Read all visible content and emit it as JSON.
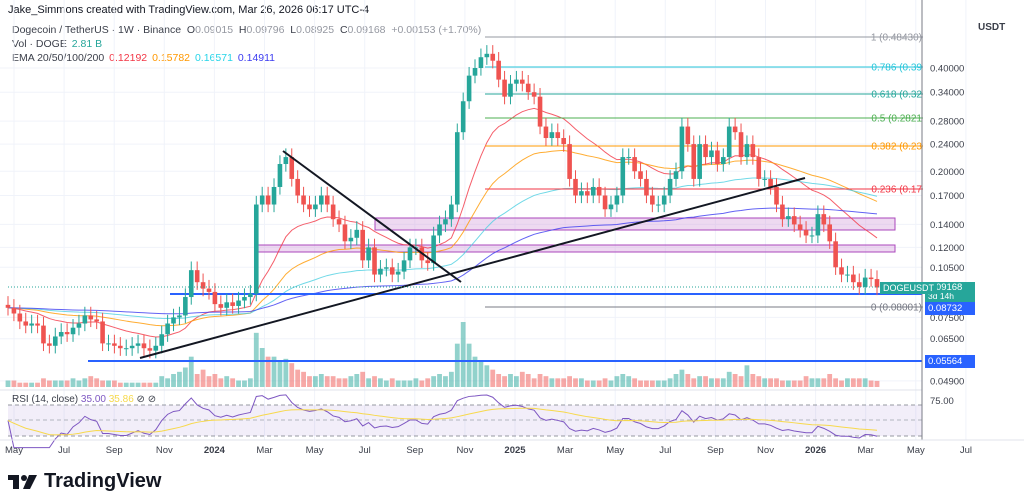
{
  "credit": "Jake_Simmons created with TradingView.com, Mar 26, 2026 06:17 UTC-4",
  "symbol": {
    "title": "Dogecoin / TetherUS · 1W · Binance",
    "open_label": "O",
    "open": "0.09015",
    "high_label": "H",
    "high": "0.09796",
    "low_label": "L",
    "low": "0.08925",
    "close_label": "C",
    "close": "0.09168",
    "change": "+0.00153 (+1.70%)"
  },
  "volume_legend": {
    "label": "Vol · DOGE",
    "value": "2.81 B"
  },
  "ema_legend": {
    "label": "EMA 20/50/100/200",
    "values": [
      "0.12192",
      "0.15782",
      "0.16571",
      "0.14911"
    ],
    "colors": [
      "#f23645",
      "#ff9800",
      "#4dd0e1",
      "#3c3cf0"
    ]
  },
  "rsi_legend": {
    "label": "RSI (14, close)",
    "value": "35.00",
    "ma_value": "35.86",
    "icons": [
      "hide-icon",
      "hide-icon"
    ]
  },
  "currency": "USDT",
  "price_axis": [
    "0.40000",
    "0.34000",
    "0.28000",
    "0.24000",
    "0.20000",
    "0.17000",
    "0.14000",
    "0.12000",
    "0.10500",
    "0.07500",
    "0.06500",
    "0.04900"
  ],
  "rsi_axis": [
    "75.00"
  ],
  "price_tags": {
    "symbol": "DOGEUSDT",
    "last": "0.09168",
    "countdown": "3d 14h",
    "level1": "0.08732",
    "level2": "0.05564",
    "colors": {
      "last": "#26a69a",
      "level": "#2962ff"
    }
  },
  "fib_levels": [
    {
      "label": "1 (0.48430)",
      "color": "#9598a1"
    },
    {
      "label": "0.786 (0.39",
      "color": "#26c6da"
    },
    {
      "label": "0.618 (0.32",
      "color": "#26a69a"
    },
    {
      "label": "0.5 (0.2821",
      "color": "#4caf50"
    },
    {
      "label": "0.382 (0.23",
      "color": "#ff9800"
    },
    {
      "label": "0.236 (0.17",
      "color": "#f23645"
    },
    {
      "label": "0 (0.08001)",
      "color": "#787b86"
    }
  ],
  "time_axis": [
    "May",
    "Jul",
    "Sep",
    "Nov",
    "2024",
    "Mar",
    "May",
    "Jul",
    "Sep",
    "Nov",
    "2025",
    "Mar",
    "May",
    "Jul",
    "Sep",
    "Nov",
    "2026",
    "Mar",
    "May",
    "Jul"
  ],
  "brand": "TradingView",
  "chart_data": {
    "type": "candlestick",
    "interval": "1W",
    "y_scale": "log",
    "ylim": [
      0.047,
      0.5
    ],
    "x_range": [
      "May 2023",
      "Jul 2026"
    ],
    "grid": true,
    "up_color": "#26a69a",
    "down_color": "#ef5350",
    "closes": [
      0.08,
      0.077,
      0.073,
      0.071,
      0.072,
      0.071,
      0.063,
      0.062,
      0.066,
      0.068,
      0.067,
      0.07,
      0.072,
      0.076,
      0.074,
      0.073,
      0.063,
      0.063,
      0.062,
      0.061,
      0.061,
      0.062,
      0.063,
      0.061,
      0.06,
      0.062,
      0.067,
      0.072,
      0.075,
      0.076,
      0.086,
      0.103,
      0.095,
      0.091,
      0.089,
      0.082,
      0.08,
      0.083,
      0.081,
      0.084,
      0.086,
      0.088,
      0.16,
      0.17,
      0.16,
      0.18,
      0.21,
      0.22,
      0.19,
      0.17,
      0.16,
      0.155,
      0.16,
      0.17,
      0.16,
      0.145,
      0.14,
      0.125,
      0.128,
      0.135,
      0.11,
      0.12,
      0.1,
      0.104,
      0.105,
      0.1,
      0.102,
      0.11,
      0.12,
      0.12,
      0.11,
      0.108,
      0.13,
      0.14,
      0.145,
      0.16,
      0.26,
      0.32,
      0.38,
      0.4,
      0.43,
      0.44,
      0.42,
      0.37,
      0.33,
      0.36,
      0.37,
      0.36,
      0.34,
      0.33,
      0.27,
      0.25,
      0.26,
      0.25,
      0.24,
      0.19,
      0.17,
      0.175,
      0.17,
      0.18,
      0.17,
      0.155,
      0.16,
      0.17,
      0.22,
      0.22,
      0.2,
      0.19,
      0.17,
      0.16,
      0.16,
      0.17,
      0.19,
      0.2,
      0.27,
      0.24,
      0.19,
      0.24,
      0.22,
      0.23,
      0.21,
      0.22,
      0.27,
      0.26,
      0.22,
      0.24,
      0.22,
      0.19,
      0.19,
      0.18,
      0.16,
      0.145,
      0.148,
      0.14,
      0.135,
      0.13,
      0.13,
      0.15,
      0.14,
      0.125,
      0.105,
      0.1,
      0.1,
      0.095,
      0.092,
      0.098,
      0.097,
      0.09168
    ],
    "volumes_billion": [
      3,
      3,
      2,
      2,
      2,
      2,
      4,
      3,
      3,
      3,
      3,
      4,
      3,
      4,
      5,
      4,
      3,
      3,
      3,
      2,
      2,
      2,
      2,
      2,
      2,
      2,
      5,
      4,
      6,
      7,
      9,
      14,
      6,
      8,
      5,
      6,
      4,
      5,
      4,
      3,
      3,
      4,
      25,
      18,
      14,
      14,
      12,
      13,
      11,
      8,
      7,
      5,
      5,
      6,
      5,
      5,
      4,
      4,
      5,
      6,
      7,
      4,
      5,
      4,
      3,
      4,
      3,
      3,
      3,
      4,
      3,
      4,
      5,
      6,
      5,
      7,
      20,
      30,
      20,
      14,
      12,
      10,
      8,
      6,
      5,
      6,
      5,
      7,
      6,
      4,
      6,
      5,
      4,
      4,
      4,
      5,
      4,
      4,
      3,
      3,
      3,
      4,
      3,
      5,
      6,
      5,
      4,
      3,
      3,
      3,
      3,
      3,
      4,
      6,
      8,
      6,
      4,
      5,
      5,
      4,
      4,
      4,
      7,
      6,
      5,
      10,
      6,
      5,
      4,
      4,
      4,
      3,
      3,
      3,
      3,
      5,
      4,
      4,
      4,
      6,
      4,
      3,
      4,
      4,
      4,
      4,
      3,
      2.81
    ],
    "horizontal_levels": [
      0.08732,
      0.05564
    ],
    "zones": [
      [
        0.136,
        0.147
      ],
      [
        0.116,
        0.121
      ]
    ]
  }
}
